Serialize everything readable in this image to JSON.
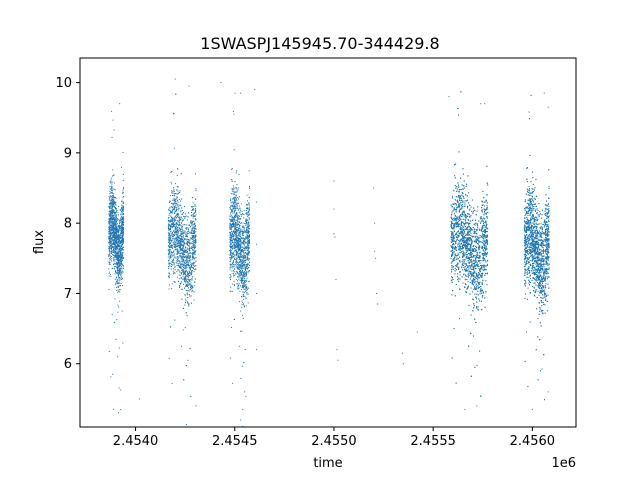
{
  "chart_data": {
    "type": "scatter",
    "title": "1SWASPJ145945.70-344429.8",
    "xlabel": "time",
    "ylabel": "flux",
    "x_offset_label": "1e6",
    "xlim": [
      2453720,
      2456220
    ],
    "ylim": [
      5.1,
      10.35
    ],
    "x_ticks": [
      2454000,
      2454500,
      2455000,
      2455500,
      2456000
    ],
    "x_tick_labels": [
      "2.4540",
      "2.4545",
      "2.4550",
      "2.4555",
      "2.4560"
    ],
    "y_ticks": [
      6,
      7,
      8,
      9,
      10
    ],
    "y_tick_labels": [
      "6",
      "7",
      "8",
      "9",
      "10"
    ],
    "grid": false,
    "marker_color": "#1f77b4",
    "series": [
      {
        "clusters": [
          {
            "x_range": [
              2453865,
              2453940
            ],
            "y_center": 7.8,
            "y_spread": 0.35,
            "density": 1500
          },
          {
            "x_range": [
              2454165,
              2454305
            ],
            "y_center": 7.7,
            "y_spread": 0.4,
            "density": 1800
          },
          {
            "x_range": [
              2454475,
              2454575
            ],
            "y_center": 7.7,
            "y_spread": 0.42,
            "density": 1500
          },
          {
            "x_range": [
              2455590,
              2455775
            ],
            "y_center": 7.7,
            "y_spread": 0.45,
            "density": 3400
          },
          {
            "x_range": [
              2455960,
              2456085
            ],
            "y_center": 7.65,
            "y_spread": 0.45,
            "density": 2800
          }
        ],
        "sparse_points": [
          [
            2454530,
            5.2
          ],
          [
            2454540,
            5.35
          ],
          [
            2454550,
            5.6
          ],
          [
            2454430,
            10.0
          ],
          [
            2454200,
            10.05
          ],
          [
            2454270,
            9.95
          ],
          [
            2454600,
            9.9
          ],
          [
            2454610,
            8.3
          ],
          [
            2454610,
            7.7
          ],
          [
            2454610,
            7.0
          ],
          [
            2454610,
            6.2
          ],
          [
            2454305,
            5.4
          ],
          [
            2453890,
            5.35
          ],
          [
            2453885,
            5.85
          ],
          [
            2453910,
            6.1
          ],
          [
            2453920,
            9.7
          ],
          [
            2454020,
            5.5
          ],
          [
            2455000,
            8.6
          ],
          [
            2455000,
            8.2
          ],
          [
            2455000,
            7.85
          ],
          [
            2455005,
            7.8
          ],
          [
            2455010,
            7.2
          ],
          [
            2455015,
            6.2
          ],
          [
            2455020,
            6.05
          ],
          [
            2455200,
            8.5
          ],
          [
            2455205,
            8.0
          ],
          [
            2455205,
            7.6
          ],
          [
            2455210,
            7.5
          ],
          [
            2455215,
            7.0
          ],
          [
            2455220,
            6.85
          ],
          [
            2455345,
            6.15
          ],
          [
            2455350,
            6.0
          ],
          [
            2455420,
            6.45
          ],
          [
            2456000,
            5.35
          ],
          [
            2456080,
            5.6
          ],
          [
            2456080,
            9.65
          ],
          [
            2456060,
            9.85
          ],
          [
            2455580,
            9.8
          ],
          [
            2455740,
            9.7
          ],
          [
            2455760,
            9.7
          ],
          [
            2455660,
            5.35
          ],
          [
            2455720,
            5.4
          ],
          [
            2454530,
            9.85
          ]
        ]
      }
    ]
  }
}
